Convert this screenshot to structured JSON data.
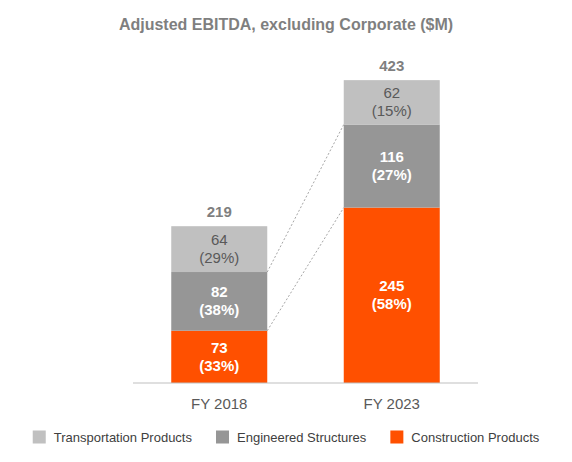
{
  "chart_data": {
    "type": "bar",
    "title": "Adjusted EBITDA, excluding Corporate ($M)",
    "categories": [
      "FY 2018",
      "FY 2023"
    ],
    "stacked": true,
    "data_labels": true,
    "tick_labels": "x",
    "grid": false,
    "legend": "bottom",
    "ylim": [
      0,
      450
    ],
    "totals": [
      219,
      423
    ],
    "series": [
      {
        "name": "Transportation Products",
        "color": "#c0c0c0",
        "values": [
          64,
          62
        ],
        "value_labels": [
          "64 (29%)",
          "62 (15%)"
        ]
      },
      {
        "name": "Engineered Structures",
        "color": "#969696",
        "values": [
          82,
          116
        ],
        "value_labels": [
          "82 (38%)",
          "116 (27%)"
        ]
      },
      {
        "name": "Construction Products",
        "color": "#ff5000",
        "values": [
          73,
          245
        ],
        "value_labels": [
          "73 (33%)",
          "245 (58%)"
        ]
      }
    ]
  }
}
